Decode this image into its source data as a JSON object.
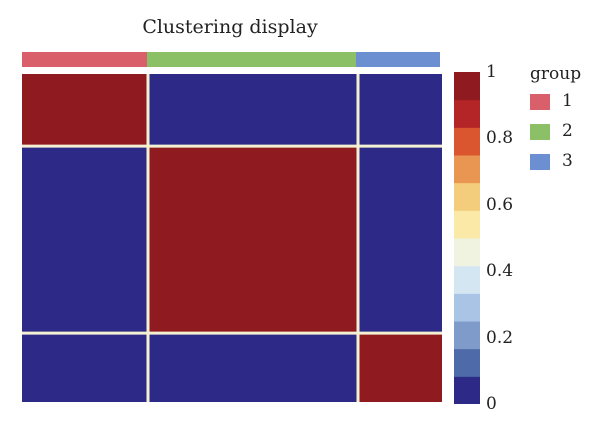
{
  "chart_data": {
    "type": "heatmap",
    "title": "Clustering display",
    "group_bar": [
      {
        "group": "1",
        "start": 0,
        "end": 30
      },
      {
        "group": "2",
        "start": 30,
        "end": 80
      },
      {
        "group": "3",
        "start": 80,
        "end": 100
      }
    ],
    "blocks": [
      {
        "rows": [
          0,
          22
        ],
        "cols": [
          0,
          30
        ],
        "value": 0.98
      },
      {
        "rows": [
          0,
          22
        ],
        "cols": [
          30,
          80
        ],
        "value": 0.02
      },
      {
        "rows": [
          0,
          22
        ],
        "cols": [
          80,
          100
        ],
        "value": 0.02
      },
      {
        "rows": [
          22,
          79
        ],
        "cols": [
          0,
          30
        ],
        "value": 0.02
      },
      {
        "rows": [
          22,
          79
        ],
        "cols": [
          30,
          80
        ],
        "value": 0.98
      },
      {
        "rows": [
          22,
          79
        ],
        "cols": [
          80,
          100
        ],
        "value": 0.02
      },
      {
        "rows": [
          79,
          100
        ],
        "cols": [
          0,
          30
        ],
        "value": 0.02
      },
      {
        "rows": [
          79,
          100
        ],
        "cols": [
          30,
          80
        ],
        "value": 0.02
      },
      {
        "rows": [
          79,
          100
        ],
        "cols": [
          80,
          100
        ],
        "value": 0.98
      }
    ],
    "colorbar": {
      "range": [
        0,
        1
      ],
      "ticks": [
        "0",
        "0.2",
        "0.4",
        "0.6",
        "0.8",
        "1"
      ],
      "colors": [
        "#2c2a86",
        "#4e6aa9",
        "#7f9bc9",
        "#aac4e6",
        "#d5e6f3",
        "#eff3e0",
        "#fbeaa7",
        "#f4cd7c",
        "#e99652",
        "#d9562f",
        "#b32526",
        "#8f1a1f"
      ]
    },
    "legend": {
      "title": "group",
      "items": [
        {
          "label": "1",
          "color": "#d9606a"
        },
        {
          "label": "2",
          "color": "#8cc067"
        },
        {
          "label": "3",
          "color": "#6b8fd1"
        }
      ]
    }
  }
}
